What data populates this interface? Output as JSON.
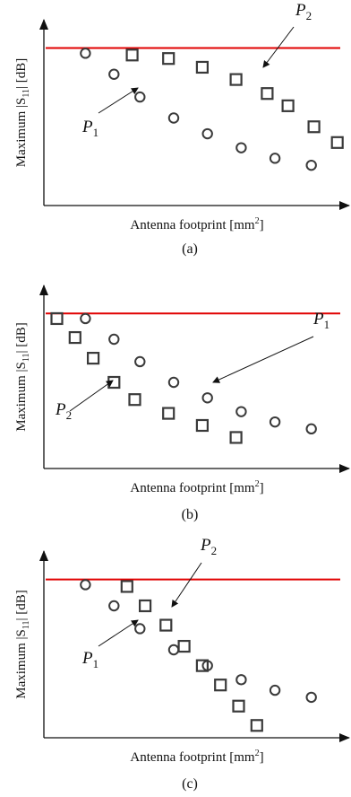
{
  "colors": {
    "threshold": "#e10000",
    "marker": "#3a3a3a",
    "axis": "#111111"
  },
  "chart_data": [
    {
      "type": "scatter",
      "caption": "(a)",
      "xlabel": "Antenna footprint [mm",
      "xlabel_sup": "2",
      "xlabel_end": "]",
      "ylabel_main": "Maximum |S",
      "ylabel_sub": "11",
      "ylabel_end": "| [dB]",
      "threshold": {
        "y": 0.9
      },
      "series": [
        {
          "name": "P1",
          "marker": "circle",
          "x": [
            0.16,
            0.27,
            0.37,
            0.5,
            0.63,
            0.76,
            0.89,
            1.03
          ],
          "y": [
            0.87,
            0.75,
            0.62,
            0.5,
            0.41,
            0.33,
            0.27,
            0.23
          ]
        },
        {
          "name": "P2",
          "marker": "square",
          "x": [
            0.34,
            0.48,
            0.61,
            0.74,
            0.86,
            0.94,
            1.04,
            1.13
          ],
          "y": [
            0.86,
            0.84,
            0.79,
            0.72,
            0.64,
            0.57,
            0.45,
            0.36
          ]
        }
      ],
      "annotations": [
        {
          "text": "P",
          "sub": "1",
          "series": "P1"
        },
        {
          "text": "P",
          "sub": "2",
          "series": "P2"
        }
      ]
    },
    {
      "type": "scatter",
      "caption": "(b)",
      "xlabel": "Antenna footprint [mm",
      "xlabel_sup": "2",
      "xlabel_end": "]",
      "ylabel_main": "Maximum |S",
      "ylabel_sub": "11",
      "ylabel_end": "| [dB]",
      "threshold": {
        "y": 0.9
      },
      "series": [
        {
          "name": "P1",
          "marker": "circle",
          "x": [
            0.16,
            0.27,
            0.37,
            0.5,
            0.63,
            0.76,
            0.89,
            1.03
          ],
          "y": [
            0.87,
            0.75,
            0.62,
            0.5,
            0.41,
            0.33,
            0.27,
            0.23
          ]
        },
        {
          "name": "P2",
          "marker": "square",
          "x": [
            0.05,
            0.12,
            0.19,
            0.27,
            0.35,
            0.48,
            0.61,
            0.74
          ],
          "y": [
            0.87,
            0.76,
            0.64,
            0.5,
            0.4,
            0.32,
            0.25,
            0.18
          ]
        }
      ],
      "annotations": [
        {
          "text": "P",
          "sub": "1",
          "series": "P1"
        },
        {
          "text": "P",
          "sub": "2",
          "series": "P2"
        }
      ]
    },
    {
      "type": "scatter",
      "caption": "(c)",
      "xlabel": "Antenna footprint [mm",
      "xlabel_sup": "2",
      "xlabel_end": "]",
      "ylabel_main": "Maximum |S",
      "ylabel_sub": "11",
      "ylabel_end": "| [dB]",
      "threshold": {
        "y": 0.9
      },
      "series": [
        {
          "name": "P1",
          "marker": "circle",
          "x": [
            0.16,
            0.27,
            0.37,
            0.5,
            0.63,
            0.76,
            0.89,
            1.03
          ],
          "y": [
            0.87,
            0.75,
            0.62,
            0.5,
            0.41,
            0.33,
            0.27,
            0.23
          ]
        },
        {
          "name": "P2",
          "marker": "square",
          "x": [
            0.32,
            0.39,
            0.47,
            0.54,
            0.61,
            0.68,
            0.75,
            0.82
          ],
          "y": [
            0.86,
            0.75,
            0.64,
            0.52,
            0.41,
            0.3,
            0.18,
            0.07
          ]
        }
      ],
      "annotations": [
        {
          "text": "P",
          "sub": "1",
          "series": "P1"
        },
        {
          "text": "P",
          "sub": "2",
          "series": "P2"
        }
      ]
    }
  ]
}
